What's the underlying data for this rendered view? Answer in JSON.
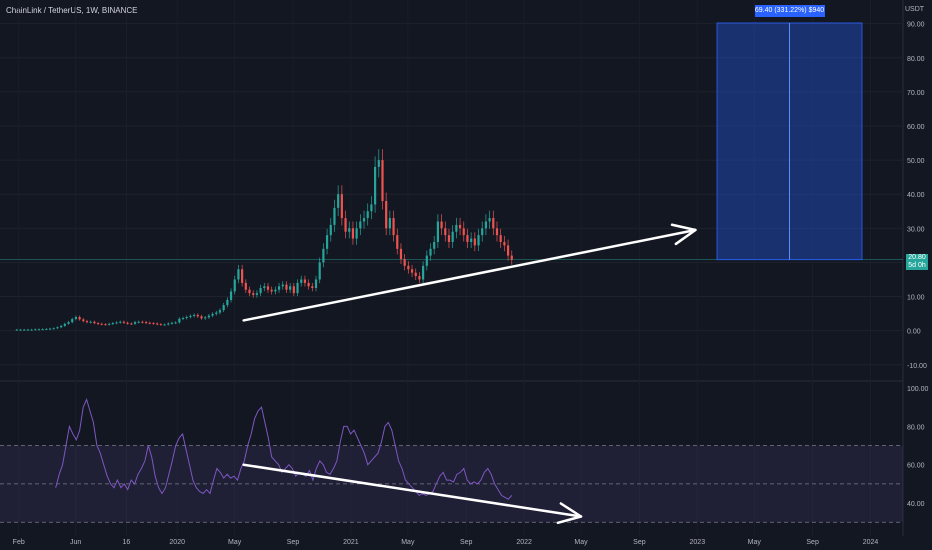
{
  "header": {
    "symbol": "ChainLink / TetherUS, 1W, BINANCE",
    "currency": "USDT"
  },
  "price_badge": {
    "price": "20.80",
    "countdown": "5d 0h"
  },
  "target_label": "69.40 (331.22%) $940",
  "colors": {
    "background": "#131722",
    "up": "#26a69a",
    "down": "#ef5350",
    "rsi_line": "#7e57c2",
    "rsi_band": "#7e57c2",
    "target_box": "#2962ff",
    "arrows": "#ffffff",
    "price_line": "#26a69a"
  },
  "chart_data": [
    {
      "type": "candlestick",
      "title": "ChainLink / TetherUS, 1W, BINANCE",
      "y_ticks": [
        90,
        80,
        70,
        60,
        50,
        40,
        30,
        20,
        10,
        0,
        -10
      ],
      "y_tick_labels": [
        "90.00",
        "80.00",
        "70.00",
        "60.00",
        "50.00",
        "40.00",
        "30.00",
        "20.00",
        "10.00",
        "0.00",
        "-10.00"
      ],
      "ylim": [
        -13,
        94
      ],
      "x_tick_labels": [
        "Feb",
        "Jun",
        "16",
        "2020",
        "May",
        "Sep",
        "2021",
        "May",
        "Sep",
        "2022",
        "May",
        "Sep",
        "2023",
        "May",
        "Sep",
        "2024"
      ],
      "x_tick_dates": [
        "2019-02-01",
        "2019-06-01",
        "2019-09-16",
        "2020-01-01",
        "2020-05-01",
        "2020-09-01",
        "2021-01-01",
        "2021-05-01",
        "2021-09-01",
        "2022-01-01",
        "2022-05-01",
        "2022-09-01",
        "2023-01-01",
        "2023-05-01",
        "2023-09-01",
        "2024-01-01"
      ],
      "last_price": 20.8,
      "close_series": [
        0.3,
        0.3,
        0.3,
        0.3,
        0.3,
        0.4,
        0.4,
        0.45,
        0.5,
        0.6,
        0.7,
        1.0,
        1.4,
        2.0,
        2.5,
        3.4,
        4.0,
        3.3,
        2.8,
        2.5,
        2.6,
        2.2,
        2.0,
        1.9,
        1.8,
        2.0,
        2.2,
        2.4,
        2.6,
        2.3,
        2.1,
        2.0,
        2.5,
        2.6,
        2.5,
        2.3,
        2.2,
        2.1,
        1.9,
        1.8,
        1.8,
        2.1,
        2.3,
        2.4,
        3.5,
        3.7,
        4.0,
        4.3,
        4.6,
        4.2,
        3.6,
        3.9,
        4.4,
        4.9,
        5.3,
        6.0,
        7.5,
        9.0,
        11.5,
        15.0,
        18.0,
        14.0,
        12.0,
        11.0,
        10.5,
        11.0,
        12.5,
        13.0,
        12.0,
        11.5,
        12.0,
        13.0,
        13.5,
        12.0,
        13.0,
        11.0,
        14.0,
        15.0,
        14.0,
        13.0,
        12.5,
        15.0,
        20.0,
        24.0,
        28.0,
        31.0,
        36.0,
        40.0,
        33.0,
        29.0,
        30.0,
        27.0,
        30.0,
        32.0,
        33.0,
        35.0,
        37.0,
        48.0,
        50.0,
        38.0,
        30.0,
        33.0,
        28.0,
        24.0,
        21.0,
        19.0,
        18.0,
        17.0,
        16.0,
        15.0,
        19.0,
        22.0,
        24.0,
        26.0,
        32.0,
        30.0,
        28.0,
        26.0,
        29.0,
        31.0,
        30.0,
        28.0,
        26.0,
        27.0,
        25.0,
        28.0,
        30.0,
        32.0,
        33.0,
        30.0,
        28.0,
        26.0,
        25.0,
        22.0,
        20.8
      ],
      "target": {
        "from": 20.8,
        "to": 90.2,
        "change": "69.40 (331.22%) $940"
      }
    },
    {
      "type": "line",
      "title": "",
      "y_ticks": [
        100,
        80,
        60,
        40
      ],
      "y_tick_labels": [
        "100.00",
        "80.00",
        "60.00",
        "40.00"
      ],
      "ylim": [
        27,
        100
      ],
      "band": [
        30,
        70
      ],
      "midline": 50,
      "values": [
        48,
        55,
        60,
        70,
        80,
        76,
        73,
        78,
        90,
        94,
        88,
        82,
        70,
        66,
        60,
        54,
        50,
        48,
        52,
        48,
        50,
        47,
        52,
        50,
        55,
        58,
        62,
        70,
        64,
        54,
        48,
        45,
        48,
        55,
        62,
        70,
        74,
        76,
        68,
        60,
        52,
        48,
        46,
        45,
        47,
        45,
        52,
        58,
        56,
        53,
        55,
        53,
        54,
        52,
        58,
        62,
        70,
        76,
        84,
        88,
        90,
        82,
        74,
        64,
        62,
        60,
        56,
        58,
        60,
        58,
        54,
        56,
        55,
        54,
        57,
        52,
        58,
        62,
        60,
        56,
        55,
        58,
        62,
        72,
        80,
        80,
        76,
        78,
        74,
        70,
        66,
        60,
        62,
        64,
        66,
        72,
        80,
        82,
        78,
        70,
        62,
        58,
        52,
        50,
        48,
        46,
        44,
        45,
        44,
        45,
        46,
        50,
        54,
        56,
        52,
        52,
        51,
        55,
        56,
        58,
        52,
        50,
        51,
        50,
        52,
        56,
        58,
        55,
        50,
        47,
        44,
        43,
        42,
        44
      ]
    }
  ]
}
